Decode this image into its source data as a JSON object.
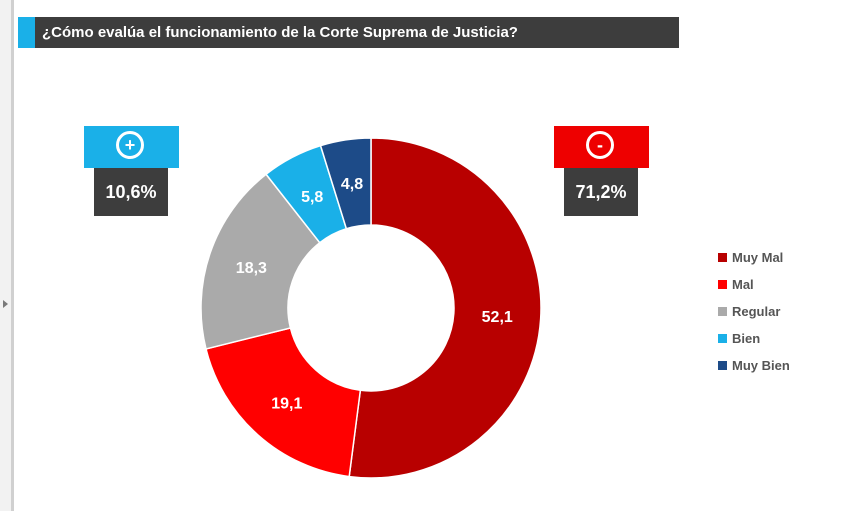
{
  "title": "¿Cómo evalúa el funcionamiento de la Corte Suprema de Justicia?",
  "positive": {
    "icon": "plus-circle-icon",
    "symbol": "+",
    "value": "10,6%",
    "color": "#1ab0e8"
  },
  "negative": {
    "icon": "minus-circle-icon",
    "symbol": "-",
    "value": "71,2%",
    "color": "#ee0000"
  },
  "chart_data": {
    "type": "pie",
    "donut": true,
    "categories": [
      "Muy Mal",
      "Mal",
      "Regular",
      "Bien",
      "Muy Bien"
    ],
    "values": [
      52.1,
      19.1,
      18.3,
      5.8,
      4.8
    ],
    "value_labels": [
      "52,1",
      "19,1",
      "18,3",
      "5,8",
      "4,8"
    ],
    "colors": [
      "#b80000",
      "#ff0000",
      "#aaaaaa",
      "#1ab0e8",
      "#1d4b88"
    ],
    "legend_position": "right"
  }
}
